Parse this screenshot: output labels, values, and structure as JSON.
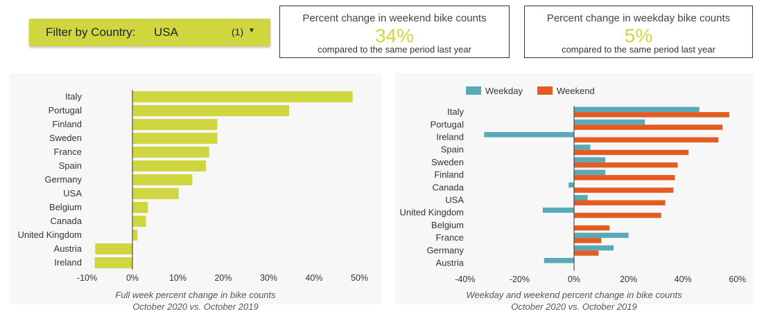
{
  "filter": {
    "label": "Filter by Country:",
    "value": "USA",
    "count": "(1)"
  },
  "kpis": [
    {
      "title": "Percent change in weekend bike counts",
      "value": "34%",
      "subtitle": "compared to the same period last year"
    },
    {
      "title": "Percent change in weekday bike counts",
      "value": "5%",
      "subtitle": "compared to the same period last year"
    }
  ],
  "colors": {
    "accent": "#cfd640",
    "weekday": "#5aa9b8",
    "weekend": "#e35d22",
    "panel_bg": "#f7f7f7"
  },
  "captions": {
    "left_line1": "Full week percent change in bike counts",
    "left_line2": "October 2020 vs. October 2019",
    "right_line1": "Weekday and weekend percent change in bike counts",
    "right_line2": "October 2020 vs. October 2019"
  },
  "chart_data": [
    {
      "type": "bar",
      "orientation": "horizontal",
      "categories": [
        "Italy",
        "Portugal",
        "Finland",
        "Sweden",
        "France",
        "Spain",
        "Germany",
        "USA",
        "Belgium",
        "Canada",
        "United Kingdom",
        "Austria",
        "Ireland"
      ],
      "values": [
        48.5,
        34.5,
        18.7,
        18.7,
        16.9,
        16.2,
        13.2,
        10.2,
        3.4,
        3.0,
        1.1,
        -8.2,
        -8.3
      ],
      "xlim": [
        -10,
        50
      ],
      "xticks": [
        "-10%",
        "0%",
        "10%",
        "20%",
        "30%",
        "40%",
        "50%"
      ],
      "xtick_values": [
        -10,
        0,
        10,
        20,
        30,
        40,
        50
      ],
      "grid": false
    },
    {
      "type": "bar",
      "orientation": "horizontal",
      "categories": [
        "Italy",
        "Portugal",
        "Ireland",
        "Spain",
        "Sweden",
        "Finland",
        "Canada",
        "USA",
        "United Kingdom",
        "Belgium",
        "France",
        "Germany",
        "Austria"
      ],
      "series": [
        {
          "name": "Weekday",
          "values": [
            46,
            26,
            -33,
            6,
            11.5,
            11.5,
            -2,
            5,
            -11.5,
            0,
            20,
            14.5,
            -11
          ]
        },
        {
          "name": "Weekend",
          "values": [
            57,
            54.5,
            53,
            42,
            38,
            37,
            36.5,
            33.5,
            32,
            13,
            10,
            9,
            0
          ]
        }
      ],
      "xlim": [
        -40,
        60
      ],
      "xticks": [
        "-40%",
        "-20%",
        "0%",
        "20%",
        "40%",
        "60%"
      ],
      "xtick_values": [
        -40,
        -20,
        0,
        20,
        40,
        60
      ],
      "legend_position": "top-left",
      "grid": false
    }
  ]
}
